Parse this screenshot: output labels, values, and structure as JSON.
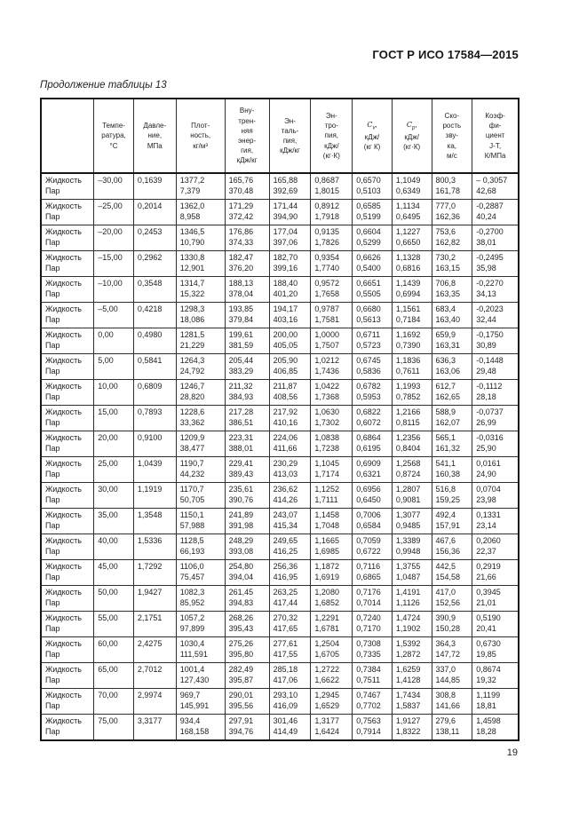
{
  "page": {
    "standard_designation": "ГОСТ Р ИСО 17584—2015",
    "table_caption": "Продолжение таблицы 13",
    "page_number": "19"
  },
  "table": {
    "phase_labels": {
      "liquid": "Жидкость",
      "vapor": "Пар"
    },
    "columns": [
      {
        "id": "phase",
        "lines": []
      },
      {
        "id": "temperature",
        "lines": [
          "Темпе-",
          "ратура,",
          "°С"
        ]
      },
      {
        "id": "pressure",
        "lines": [
          "Давле-",
          "ние,",
          "МПа"
        ]
      },
      {
        "id": "density",
        "lines": [
          "Плот-",
          "ность,",
          "кг/м³"
        ]
      },
      {
        "id": "internal_energy",
        "lines": [
          "Вну-",
          "трен-",
          "няя",
          "энер-",
          "гия,",
          "кДж/кг"
        ]
      },
      {
        "id": "enthalpy",
        "lines": [
          "Эн-",
          "таль-",
          "пия,",
          "кДж/кг"
        ]
      },
      {
        "id": "entropy",
        "lines": [
          "Эн-",
          "тро-",
          "пия,",
          "кДж/",
          "(кг·К)"
        ]
      },
      {
        "id": "cv",
        "symbol": {
          "base": "C",
          "sub": "v",
          "suffix": ","
        },
        "lines": [
          "кДж/",
          "(кг К)"
        ]
      },
      {
        "id": "cp",
        "symbol": {
          "base": "C",
          "sub": "p",
          "suffix": ","
        },
        "lines": [
          "кДж/",
          "(кг·К)"
        ]
      },
      {
        "id": "speed_of_sound",
        "lines": [
          "Ско-",
          "рость",
          "зву-",
          "ка,",
          "м/с"
        ]
      },
      {
        "id": "jt_coefficient",
        "lines": [
          "Коэф-",
          "фи-",
          "циент",
          "J-T,",
          "К/МПа"
        ]
      }
    ],
    "rows": [
      {
        "temperature": "–30,00",
        "pressure": "0,1639",
        "density": [
          "1377,2",
          "7,379"
        ],
        "internal_energy": [
          "165,76",
          "370,48"
        ],
        "enthalpy": [
          "165,88",
          "392,69"
        ],
        "entropy": [
          "0,8687",
          "1,8015"
        ],
        "cv": [
          "0,6570",
          "0,5103"
        ],
        "cp": [
          "1,1049",
          "0,6349"
        ],
        "speed_of_sound": [
          "800,3",
          "161,78"
        ],
        "jt_coefficient": [
          "– 0,3057",
          "42,68"
        ]
      },
      {
        "temperature": "–25,00",
        "pressure": "0,2014",
        "density": [
          "1362,0",
          "8,958"
        ],
        "internal_energy": [
          "171,29",
          "372,42"
        ],
        "enthalpy": [
          "171,44",
          "394,90"
        ],
        "entropy": [
          "0,8912",
          "1,7918"
        ],
        "cv": [
          "0,6585",
          "0,5199"
        ],
        "cp": [
          "1,1134",
          "0,6495"
        ],
        "speed_of_sound": [
          "777,0",
          "162,36"
        ],
        "jt_coefficient": [
          "-0,2887",
          "40,24"
        ]
      },
      {
        "temperature": "–20,00",
        "pressure": "0,2453",
        "density": [
          "1346,5",
          "10,790"
        ],
        "internal_energy": [
          "176,86",
          "374,33"
        ],
        "enthalpy": [
          "177,04",
          "397,06"
        ],
        "entropy": [
          "0,9135",
          "1,7826"
        ],
        "cv": [
          "0,6604",
          "0,5299"
        ],
        "cp": [
          "1,1227",
          "0,6650"
        ],
        "speed_of_sound": [
          "753,6",
          "162,82"
        ],
        "jt_coefficient": [
          "-0,2700",
          "38,01"
        ]
      },
      {
        "temperature": "–15,00",
        "pressure": "0,2962",
        "density": [
          "1330,8",
          "12,901"
        ],
        "internal_energy": [
          "182,47",
          "376,20"
        ],
        "enthalpy": [
          "182,70",
          "399,16"
        ],
        "entropy": [
          "0,9354",
          "1,7740"
        ],
        "cv": [
          "0,6626",
          "0,5400"
        ],
        "cp": [
          "1,1328",
          "0,6816"
        ],
        "speed_of_sound": [
          "730,2",
          "163,15"
        ],
        "jt_coefficient": [
          "-0,2495",
          "35,98"
        ]
      },
      {
        "temperature": "–10,00",
        "pressure": "0,3548",
        "density": [
          "1314,7",
          "15,322"
        ],
        "internal_energy": [
          "188,13",
          "378,04"
        ],
        "enthalpy": [
          "188,40",
          "401,20"
        ],
        "entropy": [
          "0,9572",
          "1,7658"
        ],
        "cv": [
          "0,6651",
          "0,5505"
        ],
        "cp": [
          "1,1439",
          "0,6994"
        ],
        "speed_of_sound": [
          "706,8",
          "163,35"
        ],
        "jt_coefficient": [
          "-0,2270",
          "34,13"
        ]
      },
      {
        "temperature": "–5,00",
        "pressure": "0,4218",
        "density": [
          "1298,3",
          "18,086"
        ],
        "internal_energy": [
          "193,85",
          "379,84"
        ],
        "enthalpy": [
          "194,17",
          "403,16"
        ],
        "entropy": [
          "0,9787",
          "1,7581"
        ],
        "cv": [
          "0,6680",
          "0,5613"
        ],
        "cp": [
          "1,1561",
          "0,7184"
        ],
        "speed_of_sound": [
          "683,4",
          "163,40"
        ],
        "jt_coefficient": [
          "-0,2023",
          "32,44"
        ]
      },
      {
        "temperature": "0,00",
        "pressure": "0,4980",
        "density": [
          "1281,5",
          "21,229"
        ],
        "internal_energy": [
          "199,61",
          "381,59"
        ],
        "enthalpy": [
          "200,00",
          "405,05"
        ],
        "entropy": [
          "1,0000",
          "1,7507"
        ],
        "cv": [
          "0,6711",
          "0,5723"
        ],
        "cp": [
          "1,1692",
          "0,7390"
        ],
        "speed_of_sound": [
          "659,9",
          "163,31"
        ],
        "jt_coefficient": [
          "-0,1750",
          "30,89"
        ]
      },
      {
        "temperature": "5,00",
        "pressure": "0,5841",
        "density": [
          "1264,3",
          "24,792"
        ],
        "internal_energy": [
          "205,44",
          "383,29"
        ],
        "enthalpy": [
          "205,90",
          "406,85"
        ],
        "entropy": [
          "1,0212",
          "1,7436"
        ],
        "cv": [
          "0,6745",
          "0,5836"
        ],
        "cp": [
          "1,1836",
          "0,7611"
        ],
        "speed_of_sound": [
          "636,3",
          "163,06"
        ],
        "jt_coefficient": [
          "-0,1448",
          "29,48"
        ]
      },
      {
        "temperature": "10,00",
        "pressure": "0,6809",
        "density": [
          "1246,7",
          "28,820"
        ],
        "internal_energy": [
          "211,32",
          "384,93"
        ],
        "enthalpy": [
          "211,87",
          "408,56"
        ],
        "entropy": [
          "1,0422",
          "1,7368"
        ],
        "cv": [
          "0,6782",
          "0,5953"
        ],
        "cp": [
          "1,1993",
          "0,7852"
        ],
        "speed_of_sound": [
          "612,7",
          "162,65"
        ],
        "jt_coefficient": [
          "-0,1112",
          "28,18"
        ]
      },
      {
        "temperature": "15,00",
        "pressure": "0,7893",
        "density": [
          "1228,6",
          "33,362"
        ],
        "internal_energy": [
          "217,28",
          "386,51"
        ],
        "enthalpy": [
          "217,92",
          "410,16"
        ],
        "entropy": [
          "1,0630",
          "1,7302"
        ],
        "cv": [
          "0,6822",
          "0,6072"
        ],
        "cp": [
          "1,2166",
          "0,8115"
        ],
        "speed_of_sound": [
          "588,9",
          "162,07"
        ],
        "jt_coefficient": [
          "-0,0737",
          "26,99"
        ]
      },
      {
        "temperature": "20,00",
        "pressure": "0,9100",
        "density": [
          "1209,9",
          "38,477"
        ],
        "internal_energy": [
          "223,31",
          "388,01"
        ],
        "enthalpy": [
          "224,06",
          "411,66"
        ],
        "entropy": [
          "1,0838",
          "1,7238"
        ],
        "cv": [
          "0,6864",
          "0,6195"
        ],
        "cp": [
          "1,2356",
          "0,8404"
        ],
        "speed_of_sound": [
          "565,1",
          "161,32"
        ],
        "jt_coefficient": [
          "-0,0316",
          "25,90"
        ]
      },
      {
        "temperature": "25,00",
        "pressure": "1,0439",
        "density": [
          "1190,7",
          "44,232"
        ],
        "internal_energy": [
          "229,41",
          "389,43"
        ],
        "enthalpy": [
          "230,29",
          "413,03"
        ],
        "entropy": [
          "1,1045",
          "1,7174"
        ],
        "cv": [
          "0,6909",
          "0,6321"
        ],
        "cp": [
          "1,2568",
          "0,8724"
        ],
        "speed_of_sound": [
          "541,1",
          "160,38"
        ],
        "jt_coefficient": [
          "0,0161",
          "24,90"
        ]
      },
      {
        "temperature": "30,00",
        "pressure": "1,1919",
        "density": [
          "1170,7",
          "50,705"
        ],
        "internal_energy": [
          "235,61",
          "390,76"
        ],
        "enthalpy": [
          "236,62",
          "414,26"
        ],
        "entropy": [
          "1,1252",
          "1,7111"
        ],
        "cv": [
          "0,6956",
          "0,6450"
        ],
        "cp": [
          "1,2807",
          "0,9081"
        ],
        "speed_of_sound": [
          "516,8",
          "159,25"
        ],
        "jt_coefficient": [
          "0,0704",
          "23,98"
        ]
      },
      {
        "temperature": "35,00",
        "pressure": "1,3548",
        "density": [
          "1150,1",
          "57,988"
        ],
        "internal_energy": [
          "241,89",
          "391,98"
        ],
        "enthalpy": [
          "243,07",
          "415,34"
        ],
        "entropy": [
          "1,1458",
          "1,7048"
        ],
        "cv": [
          "0,7006",
          "0,6584"
        ],
        "cp": [
          "1,3077",
          "0,9485"
        ],
        "speed_of_sound": [
          "492,4",
          "157,91"
        ],
        "jt_coefficient": [
          "0,1331",
          "23,14"
        ]
      },
      {
        "temperature": "40,00",
        "pressure": "1,5336",
        "density": [
          "1128,5",
          "66,193"
        ],
        "internal_energy": [
          "248,29",
          "393,08"
        ],
        "enthalpy": [
          "249,65",
          "416,25"
        ],
        "entropy": [
          "1,1665",
          "1,6985"
        ],
        "cv": [
          "0,7059",
          "0,6722"
        ],
        "cp": [
          "1,3389",
          "0,9948"
        ],
        "speed_of_sound": [
          "467,6",
          "156,36"
        ],
        "jt_coefficient": [
          "0,2060",
          "22,37"
        ]
      },
      {
        "temperature": "45,00",
        "pressure": "1,7292",
        "density": [
          "1106,0",
          "75,457"
        ],
        "internal_energy": [
          "254,80",
          "394,04"
        ],
        "enthalpy": [
          "256,36",
          "416,95"
        ],
        "entropy": [
          "1,1872",
          "1,6919"
        ],
        "cv": [
          "0,7116",
          "0,6865"
        ],
        "cp": [
          "1,3755",
          "1,0487"
        ],
        "speed_of_sound": [
          "442,5",
          "154,58"
        ],
        "jt_coefficient": [
          "0,2919",
          "21,66"
        ]
      },
      {
        "temperature": "50,00",
        "pressure": "1,9427",
        "density": [
          "1082,3",
          "85,952"
        ],
        "internal_energy": [
          "261,45",
          "394,83"
        ],
        "enthalpy": [
          "263,25",
          "417,44"
        ],
        "entropy": [
          "1,2080",
          "1,6852"
        ],
        "cv": [
          "0,7176",
          "0,7014"
        ],
        "cp": [
          "1,4191",
          "1,1126"
        ],
        "speed_of_sound": [
          "417,0",
          "152,56"
        ],
        "jt_coefficient": [
          "0,3945",
          "21,01"
        ]
      },
      {
        "temperature": "55,00",
        "pressure": "2,1751",
        "density": [
          "1057,2",
          "97,899"
        ],
        "internal_energy": [
          "268,26",
          "395,43"
        ],
        "enthalpy": [
          "270,32",
          "417,65"
        ],
        "entropy": [
          "1,2291",
          "1,6781"
        ],
        "cv": [
          "0,7240",
          "0,7170"
        ],
        "cp": [
          "1,4724",
          "1,1902"
        ],
        "speed_of_sound": [
          "390,9",
          "150,28"
        ],
        "jt_coefficient": [
          "0,5190",
          "20,41"
        ]
      },
      {
        "temperature": "60,00",
        "pressure": "2,4275",
        "density": [
          "1030,4",
          "111,591"
        ],
        "internal_energy": [
          "275,26",
          "395,80"
        ],
        "enthalpy": [
          "277,61",
          "417,55"
        ],
        "entropy": [
          "1,2504",
          "1,6705"
        ],
        "cv": [
          "0,7308",
          "0,7335"
        ],
        "cp": [
          "1,5392",
          "1,2872"
        ],
        "speed_of_sound": [
          "364,3",
          "147,72"
        ],
        "jt_coefficient": [
          "0,6730",
          "19,85"
        ]
      },
      {
        "temperature": "65,00",
        "pressure": "2,7012",
        "density": [
          "1001,4",
          "127,430"
        ],
        "internal_energy": [
          "282,49",
          "395,87"
        ],
        "enthalpy": [
          "285,18",
          "417,06"
        ],
        "entropy": [
          "1,2722",
          "1,6622"
        ],
        "cv": [
          "0,7384",
          "0,7511"
        ],
        "cp": [
          "1,6259",
          "1,4128"
        ],
        "speed_of_sound": [
          "337,0",
          "144,85"
        ],
        "jt_coefficient": [
          "0,8674",
          "19,32"
        ]
      },
      {
        "temperature": "70,00",
        "pressure": "2,9974",
        "density": [
          "969,7",
          "145,991"
        ],
        "internal_energy": [
          "290,01",
          "395,56"
        ],
        "enthalpy": [
          "293,10",
          "416,09"
        ],
        "entropy": [
          "1,2945",
          "1,6529"
        ],
        "cv": [
          "0,7467",
          "0,7702"
        ],
        "cp": [
          "1,7434",
          "1,5837"
        ],
        "speed_of_sound": [
          "308,8",
          "141,66"
        ],
        "jt_coefficient": [
          "1,1199",
          "18,81"
        ]
      },
      {
        "temperature": "75,00",
        "pressure": "3,3177",
        "density": [
          "934,4",
          "168,158"
        ],
        "internal_energy": [
          "297,91",
          "394,76"
        ],
        "enthalpy": [
          "301,46",
          "414,49"
        ],
        "entropy": [
          "1,3177",
          "1,6424"
        ],
        "cv": [
          "0,7563",
          "0,7914"
        ],
        "cp": [
          "1,9127",
          "1,8322"
        ],
        "speed_of_sound": [
          "279,6",
          "138,11"
        ],
        "jt_coefficient": [
          "1,4598",
          "18,28"
        ]
      }
    ]
  }
}
